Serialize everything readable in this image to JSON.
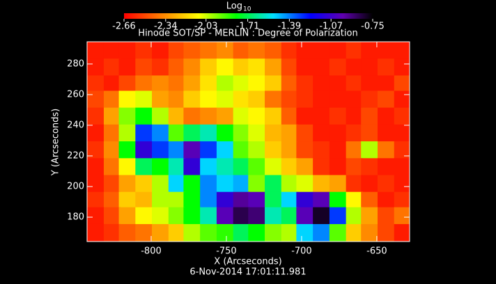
{
  "chart_data": {
    "type": "heatmap",
    "title": "Hinode SOT/SP - MERLIN : Degree of Polarization",
    "colorbar_title": "Log",
    "colorbar_title_sub": "10",
    "xlabel": "X (Arcseconds)",
    "ylabel": "Y (Arcseconds)",
    "footer": "6-Nov-2014 17:01:11.981",
    "xlim": [
      -842.6,
      -628.2
    ],
    "ylim": [
      164.1,
      294.5
    ],
    "xticks": [
      -800,
      -750,
      -700,
      -650
    ],
    "yticks": [
      180,
      200,
      220,
      240,
      260,
      280
    ],
    "clim": [
      -2.66,
      -0.75
    ],
    "cticks": [
      -2.66,
      -2.34,
      -2.03,
      -1.71,
      -1.39,
      -1.07,
      -0.75
    ],
    "x": [
      -837,
      -826,
      -816,
      -805,
      -794,
      -783,
      -773,
      -762,
      -751,
      -740,
      -730,
      -719,
      -708,
      -698,
      -687,
      -676,
      -665,
      -655,
      -644,
      -633
    ],
    "y": [
      289,
      278,
      267,
      257,
      246,
      235,
      224,
      213,
      202,
      191,
      181,
      170
    ],
    "z": [
      [
        -2.6,
        -2.6,
        -2.6,
        -2.55,
        -2.6,
        -2.5,
        -2.45,
        -2.4,
        -2.35,
        -2.45,
        -2.4,
        -2.45,
        -2.55,
        -2.6,
        -2.6,
        -2.6,
        -2.55,
        -2.6,
        -2.6,
        -2.6
      ],
      [
        -2.6,
        -2.55,
        -2.6,
        -2.5,
        -2.55,
        -2.45,
        -2.35,
        -2.2,
        -2.1,
        -2.2,
        -2.15,
        -2.3,
        -2.5,
        -2.6,
        -2.6,
        -2.55,
        -2.6,
        -2.6,
        -2.55,
        -2.6
      ],
      [
        -2.55,
        -2.6,
        -2.5,
        -2.4,
        -2.35,
        -2.4,
        -2.3,
        -2.15,
        -2.0,
        -2.05,
        -2.1,
        -2.2,
        -2.45,
        -2.55,
        -2.6,
        -2.6,
        -2.55,
        -2.6,
        -2.6,
        -2.5
      ],
      [
        -2.5,
        -2.4,
        -2.1,
        -2.05,
        -2.3,
        -2.35,
        -2.2,
        -2.1,
        -2.05,
        -2.15,
        -2.2,
        -2.4,
        -2.5,
        -2.55,
        -2.6,
        -2.6,
        -2.6,
        -2.55,
        -2.5,
        -2.6
      ],
      [
        -2.55,
        -2.3,
        -1.95,
        -1.8,
        -2.0,
        -2.25,
        -2.4,
        -2.35,
        -2.3,
        -2.05,
        -2.1,
        -2.2,
        -2.45,
        -2.6,
        -2.6,
        -2.55,
        -2.6,
        -2.5,
        -2.6,
        -2.55
      ],
      [
        -2.6,
        -2.4,
        -2.0,
        -1.3,
        -1.4,
        -1.9,
        -1.7,
        -1.6,
        -1.8,
        -1.95,
        -2.05,
        -2.25,
        -2.3,
        -2.5,
        -2.6,
        -2.6,
        -2.55,
        -2.5,
        -2.6,
        -2.6
      ],
      [
        -2.55,
        -2.35,
        -1.8,
        -1.1,
        -1.3,
        -1.4,
        -1.0,
        -1.3,
        -1.5,
        -1.9,
        -2.0,
        -2.2,
        -2.3,
        -2.5,
        -2.55,
        -2.6,
        -2.4,
        -2.0,
        -2.4,
        -2.55
      ],
      [
        -2.6,
        -2.4,
        -2.1,
        -1.7,
        -1.8,
        -1.6,
        -1.1,
        -1.5,
        -1.6,
        -1.7,
        -1.9,
        -2.05,
        -2.2,
        -2.3,
        -2.55,
        -2.6,
        -2.5,
        -2.55,
        -2.6,
        -2.6
      ],
      [
        -2.6,
        -2.5,
        -2.3,
        -2.2,
        -2.0,
        -1.5,
        -1.8,
        -1.4,
        -1.5,
        -1.45,
        -1.95,
        -1.7,
        -2.0,
        -2.05,
        -2.25,
        -2.3,
        -2.55,
        -2.6,
        -2.55,
        -2.6
      ],
      [
        -2.55,
        -2.45,
        -2.2,
        -2.25,
        -2.0,
        -2.0,
        -1.8,
        -1.4,
        -1.1,
        -0.95,
        -1.0,
        -1.7,
        -1.5,
        -1.1,
        -1.0,
        -1.8,
        -2.1,
        -2.45,
        -2.6,
        -2.55
      ],
      [
        -2.6,
        -2.5,
        -2.3,
        -2.1,
        -2.05,
        -1.95,
        -1.8,
        -1.6,
        -1.0,
        -0.85,
        -0.9,
        -1.6,
        -1.7,
        -1.0,
        -0.8,
        -1.3,
        -2.0,
        -2.3,
        -2.5,
        -2.4
      ],
      [
        -2.6,
        -2.55,
        -2.45,
        -2.4,
        -2.3,
        -2.2,
        -2.0,
        -1.9,
        -1.85,
        -1.7,
        -1.8,
        -1.95,
        -2.0,
        -1.5,
        -1.4,
        -1.9,
        -2.2,
        -2.35,
        -2.5,
        -2.6
      ]
    ]
  }
}
